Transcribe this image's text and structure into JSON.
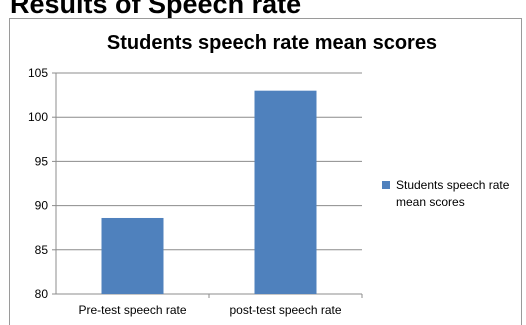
{
  "slide": {
    "heading": "Results of  Speech rate"
  },
  "chart_data": {
    "type": "bar",
    "title": "Students speech rate mean scores",
    "categories": [
      "Pre-test speech rate",
      "post-test speech rate"
    ],
    "series": [
      {
        "name": "Students speech rate mean scores",
        "values": [
          88.6,
          103
        ],
        "color": "#4f81bd"
      }
    ],
    "ylim": [
      80,
      105
    ],
    "yticks": [
      80,
      85,
      90,
      95,
      100,
      105
    ],
    "grid": true,
    "legend_position": "right"
  }
}
